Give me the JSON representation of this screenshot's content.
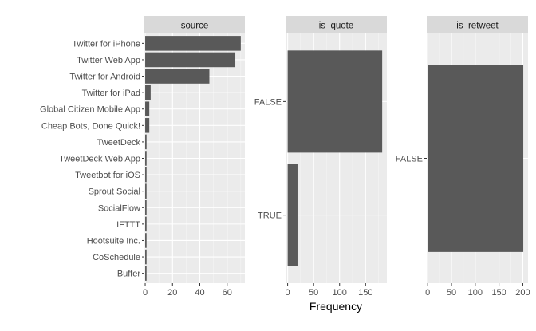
{
  "colors": {
    "panel_background": "#ebebeb",
    "grid_major": "#ffffff",
    "strip_background": "#d9d9d9",
    "bar_fill": "#595959",
    "tick_color": "#333333"
  },
  "xlabel": "Frequency",
  "chart_data": [
    {
      "type": "bar",
      "orientation": "horizontal",
      "facet_label": "source",
      "categories": [
        "Twitter for iPhone",
        "Twitter Web App",
        "Twitter for Android",
        "Twitter for iPad",
        "Global Citizen Mobile App",
        "Cheap Bots, Done Quick!",
        "TweetDeck",
        "TweetDeck Web App",
        "Tweetbot for iOS",
        "Sprout Social",
        "SocialFlow",
        "IFTTT",
        "Hootsuite Inc.",
        "CoSchedule",
        "Buffer"
      ],
      "values": [
        70,
        66,
        47,
        4,
        3,
        3,
        1,
        1,
        1,
        1,
        1,
        1,
        1,
        1,
        1
      ],
      "xlim": [
        -0.6,
        73
      ],
      "xticks": [
        0,
        20,
        40,
        60
      ],
      "grid": true
    },
    {
      "type": "bar",
      "orientation": "horizontal",
      "facet_label": "is_quote",
      "categories": [
        "FALSE",
        "TRUE"
      ],
      "values": [
        182,
        19
      ],
      "xlim": [
        -4,
        191
      ],
      "xticks": [
        0,
        50,
        100,
        150
      ],
      "grid": true
    },
    {
      "type": "bar",
      "orientation": "horizontal",
      "facet_label": "is_retweet",
      "categories": [
        "FALSE"
      ],
      "values": [
        201
      ],
      "xlim": [
        -2,
        211
      ],
      "xticks": [
        0,
        50,
        100,
        150,
        200
      ],
      "grid": true
    }
  ]
}
